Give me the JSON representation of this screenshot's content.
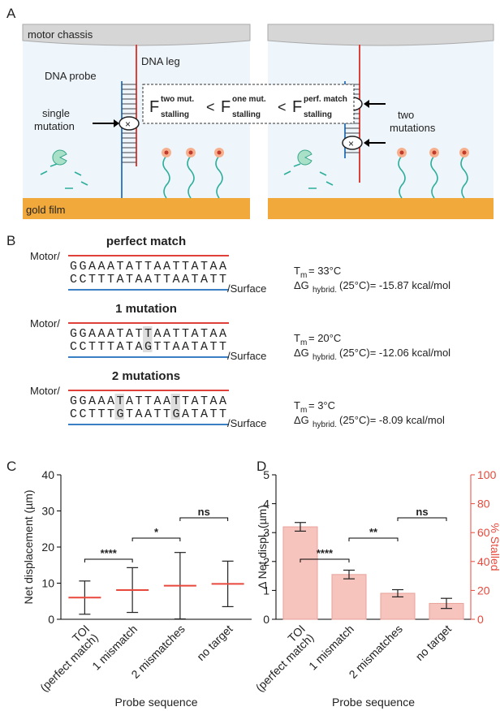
{
  "panel_a": {
    "label": "A",
    "left": {
      "chassis": "motor chassis",
      "leg": "DNA leg",
      "probe": "DNA probe",
      "mutation": [
        "single",
        "mutation"
      ],
      "film": "gold film"
    },
    "right": {
      "mutation": [
        "two",
        "mutations"
      ]
    },
    "formula": {
      "terms": [
        {
          "symbol": "F",
          "sup": "two mut.",
          "sub": "stalling"
        },
        {
          "symbol": "F",
          "sup": "one mut.",
          "sub": "stalling"
        },
        {
          "symbol": "F",
          "sup": "perf. match",
          "sub": "stalling"
        }
      ],
      "operator": "<"
    }
  },
  "panel_b": {
    "label": "B",
    "motor": "Motor/",
    "surface": "/Surface",
    "duplexes": [
      {
        "title": "perfect match",
        "top": "GGAAATATTAATTATAA",
        "bottom": "CCTTTATAATTAATATT",
        "tm": {
          "symbol": "T",
          "sub": "m",
          "value": "= 33°C"
        },
        "dg": {
          "symbol": "ΔG",
          "sub": "hybrid.",
          "value": "(25°C)= -15.87 kcal/mol"
        }
      },
      {
        "title": "1 mutation",
        "top": "GGAAATATTAATTATAA",
        "bottom": "CCTTTATAGTTAATATT",
        "tm": {
          "symbol": "T",
          "sub": "m",
          "value": "= 20°C"
        },
        "dg": {
          "symbol": "ΔG",
          "sub": "hybrid.",
          "value": "(25°C)= -12.06 kcal/mol"
        }
      },
      {
        "title": "2 mutations",
        "top": "GGAAATATTAATTATAA",
        "bottom": "CCTTTGTAATTGATATT",
        "tm": {
          "symbol": "T",
          "sub": "m",
          "value": "= 3°C"
        },
        "dg": {
          "symbol": "ΔG",
          "sub": "hybrid.",
          "value": "(25°C)= -8.09 kcal/mol"
        }
      }
    ]
  },
  "chart_data": [
    {
      "type": "dot",
      "label": "C",
      "ylabel": "Net displacement (µm)",
      "xlabel": "Probe sequence",
      "categories": [
        [
          "TOI",
          "(perfect match)"
        ],
        [
          "1 mismatch"
        ],
        [
          "2 mismatches"
        ],
        [
          "no target"
        ]
      ],
      "values": [
        6,
        8.1,
        9.3,
        9.8
      ],
      "errors": [
        4.6,
        6.2,
        9.2,
        6.3
      ],
      "color": "#e8483b",
      "ylim": [
        0,
        40
      ],
      "yticks": [
        0,
        10,
        20,
        30,
        40
      ],
      "significance": [
        {
          "between": [
            0,
            1
          ],
          "label": "****"
        },
        {
          "between": [
            1,
            2
          ],
          "label": "*"
        },
        {
          "between": [
            2,
            3
          ],
          "label": "ns"
        }
      ]
    },
    {
      "type": "bar",
      "label": "D",
      "ylabel": "Δ Net displ. (µm)",
      "xlabel": "Probe sequence",
      "categories": [
        [
          "TOI",
          "(perfect match)"
        ],
        [
          "1 mismatch"
        ],
        [
          "2 mismatches"
        ],
        [
          "no target"
        ]
      ],
      "ylim": [
        0,
        5
      ],
      "yticks": [
        0,
        1,
        2,
        3,
        4,
        5
      ],
      "y2lim": [
        0,
        100
      ],
      "y2ticks": [
        0,
        20,
        40,
        60,
        80,
        100
      ],
      "y2color": "#e8483b",
      "series": [
        {
          "name": "% Stalled",
          "axis": "y2",
          "color": "#f6c3bd",
          "values": [
            64,
            31,
            18,
            11
          ],
          "errors": [
            3,
            3,
            2.5,
            3.5
          ]
        }
      ],
      "significance": [
        {
          "between": [
            0,
            1
          ],
          "label": "****"
        },
        {
          "between": [
            1,
            2
          ],
          "label": "**"
        },
        {
          "between": [
            2,
            3
          ],
          "label": "ns"
        }
      ]
    }
  ]
}
